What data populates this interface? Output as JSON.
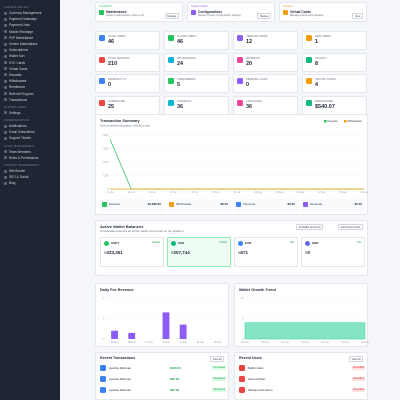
{
  "sidebar": {
    "groups": [
      {
        "heading": "FINANCE WALLET",
        "items": [
          "Currency Management",
          "Payment Gateways",
          "Payment Links",
          "Mobile Recharge",
          "P2P Marketplace",
          "Vendor Marketplace",
          "Subscriptions",
          "Wallet Sort",
          "KYC Cards",
          "Virtual Cards",
          "Deposits",
          "Withdrawals",
          "Remittance",
          "Referral Program",
          "Transactions"
        ]
      },
      {
        "heading": "SYSTEM USERS",
        "items": [
          "Settings"
        ]
      },
      {
        "heading": "COMMUNICATION",
        "items": [
          "Notifications",
          "Email Subscribers",
          "Support Tickets"
        ]
      },
      {
        "heading": "STAFF MANAGEMENT",
        "items": [
          "Team Members",
          "Roles & Permissions"
        ]
      },
      {
        "heading": "CONTENT MANAGEMENT",
        "items": [
          "Site Builder",
          "SEO & Social",
          "Blog"
        ]
      }
    ]
  },
  "top_cards": [
    {
      "badge": "Completed",
      "title": "Maintenance",
      "text": "System maintenance mode is off",
      "button": "Manage"
    },
    {
      "badge": "System Status",
      "title": "Configurations",
      "text": "Review system configuration settings",
      "button": "Review"
    },
    {
      "badge": "Pending",
      "title": "Virtual Cards",
      "text": "Manage virtual card requests",
      "button": "View"
    }
  ],
  "stats": [
    {
      "label": "TOTAL USERS",
      "value": "46"
    },
    {
      "label": "ACTIVE USERS",
      "value": "46"
    },
    {
      "label": "VERIFIED USERS",
      "value": "12"
    },
    {
      "label": "NEW USERS",
      "value": "1"
    },
    {
      "label": "TOTAL DEPOSITS",
      "value": "210"
    },
    {
      "label": "WITHDRAWALS",
      "value": "24"
    },
    {
      "label": "PAYMENTS",
      "value": "20"
    },
    {
      "label": "TICKETS",
      "value": "8"
    },
    {
      "label": "PENDING KYC",
      "value": "0"
    },
    {
      "label": "SUBSCRIBERS",
      "value": "5"
    },
    {
      "label": "PENDING LOANS",
      "value": "0"
    },
    {
      "label": "VIRTUAL CARDS",
      "value": "4"
    },
    {
      "label": "CURRENCIES",
      "value": "25"
    },
    {
      "label": "GATEWAYS",
      "value": "36"
    },
    {
      "label": "LANGUAGES",
      "value": "36"
    },
    {
      "label": "FEES EARNED",
      "value": "$540.07"
    }
  ],
  "summary": [
    {
      "label": "Deposits",
      "value": "$3,686.05"
    },
    {
      "label": "Withdrawals",
      "value": "$0.00"
    },
    {
      "label": "Payments",
      "value": "$0.00"
    },
    {
      "label": "Reversals",
      "value": "$0.00"
    }
  ],
  "wallets": {
    "title": "Active Wallet Balances",
    "subtitle": "Consolidated across all active wallet currencies on the platform",
    "buttons": [
      "All Wallet Accounts",
      "Currencies Active"
    ],
    "items": [
      {
        "currency": "USDT",
        "tag": "Default",
        "balance": "≈333,351"
      },
      {
        "currency": "USD",
        "tag": "Default",
        "balance": "≈207,744"
      },
      {
        "currency": "EUR",
        "tag": "Fiat",
        "balance": "≈671"
      },
      {
        "currency": "GBP",
        "tag": "Fiat",
        "balance": "≈0"
      }
    ]
  },
  "recent_transactions": {
    "heading": "Recent Transactions",
    "button": "View All",
    "rows": [
      {
        "name": "Ayesha Rahman",
        "amount": "$100.00",
        "status": "Completed"
      },
      {
        "name": "Ayesha Rahman",
        "amount": "$50.00",
        "status": "Completed"
      },
      {
        "name": "Ayesha Rahman",
        "amount": "$25.00",
        "status": "Completed"
      }
    ]
  },
  "recent_users": {
    "heading": "Recent Users",
    "button": "View All",
    "rows": [
      {
        "name": "Rafiul Islam",
        "status": "Unverified"
      },
      {
        "name": "Ahmed Khan",
        "status": "Unverified"
      },
      {
        "name": "Mohammed Karim",
        "status": "Unverified"
      }
    ]
  },
  "chart_data": [
    {
      "type": "line",
      "title": "Transaction Summary",
      "subtitle": "Daily completed transaction volume by type",
      "categories": [
        "13 Jul",
        "16 Jul",
        "19 Jul",
        "22 Jul",
        "25 Jul",
        "28 Jul",
        "31 Jul",
        "03 Aug",
        "06 Aug",
        "09 Aug",
        "12 Aug",
        "15 Aug",
        "18 Aug"
      ],
      "series": [
        {
          "name": "Deposits",
          "color": "#22c55e",
          "values": [
            3686.05,
            0,
            0,
            0,
            0,
            0,
            0,
            0,
            0,
            0,
            0,
            0,
            0
          ]
        },
        {
          "name": "Withdrawals",
          "color": "#f59e0b",
          "values": [
            0,
            0,
            0,
            0,
            0,
            0,
            0,
            0,
            0,
            0,
            0,
            0,
            0
          ]
        }
      ],
      "ylim": [
        0,
        4000
      ],
      "yticks": [
        0,
        1000,
        2000,
        3000,
        4000
      ],
      "grid": true
    },
    {
      "type": "bar",
      "title": "Daily Fee Revenue",
      "color": "#8b5cf6",
      "categories": [
        "06 Aug",
        "08 Aug",
        "10 Aug",
        "12 Aug",
        "14 Aug",
        "16 Aug",
        "18 Aug"
      ],
      "values": [
        0.4,
        0.3,
        0,
        1.3,
        0.7,
        0,
        0
      ],
      "ylim": [
        0,
        2
      ],
      "yticks": [
        0,
        1,
        2
      ],
      "grid": true
    },
    {
      "type": "area",
      "title": "Wallet Growth Trend",
      "color": "#34d399",
      "categories": [
        "06 Aug",
        "08 Aug",
        "10 Aug",
        "12 Aug",
        "14 Aug",
        "16 Aug",
        "18 Aug"
      ],
      "values": [
        4,
        4,
        4,
        4,
        4,
        4,
        4
      ],
      "ylim": [
        0,
        10
      ],
      "yticks": [
        0,
        5,
        10
      ],
      "grid": true
    }
  ]
}
